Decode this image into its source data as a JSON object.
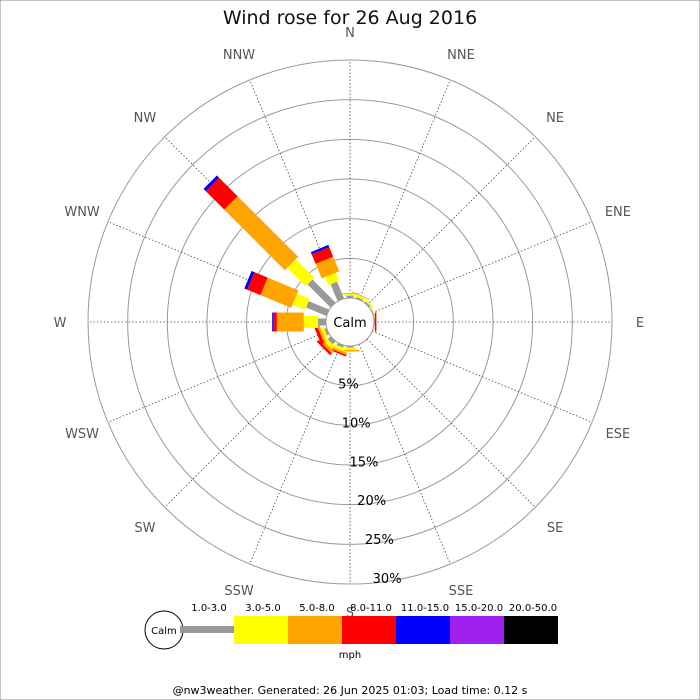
{
  "chart_data": {
    "type": "wind-rose",
    "title": "Wind rose for 26 Aug 2016",
    "directions": [
      "N",
      "NNE",
      "NE",
      "ENE",
      "E",
      "ESE",
      "SE",
      "SSE",
      "S",
      "SSW",
      "SW",
      "WSW",
      "W",
      "WNW",
      "NW",
      "NNW"
    ],
    "ring_labels": [
      "5%",
      "10%",
      "15%",
      "20%",
      "25%",
      "30%"
    ],
    "rmax_pct": 30,
    "calm_label": "Calm",
    "unit": "mph",
    "speed_bins": [
      {
        "label": "1.0-3.0",
        "color": "#999999"
      },
      {
        "label": "3.0-5.0",
        "color": "#ffff00"
      },
      {
        "label": "5.0-8.0",
        "color": "#ffa500"
      },
      {
        "label": "8.0-11.0",
        "color": "#ff0000"
      },
      {
        "label": "11.0-15.0",
        "color": "#0000ff"
      },
      {
        "label": "15.0-20.0",
        "color": "#a020f0"
      },
      {
        "label": "20.0-50.0",
        "color": "#000000"
      }
    ],
    "frequencies_pct": {
      "N": [
        0.3,
        0.2,
        0.1,
        0,
        0,
        0,
        0
      ],
      "NNE": [
        0.2,
        0.3,
        0.1,
        0,
        0,
        0,
        0
      ],
      "NE": [
        0.2,
        0.2,
        0,
        0,
        0,
        0,
        0
      ],
      "ENE": [
        0.1,
        0.1,
        0,
        0,
        0,
        0,
        0
      ],
      "E": [
        0.1,
        0,
        0,
        0.2,
        0,
        0,
        0
      ],
      "ESE": [
        0,
        0,
        0,
        0,
        0,
        0,
        0
      ],
      "SE": [
        0,
        0,
        0,
        0,
        0,
        0,
        0
      ],
      "SSE": [
        0,
        0,
        0,
        0,
        0,
        0,
        0
      ],
      "S": [
        0.2,
        0.3,
        0.2,
        0,
        0,
        0,
        0
      ],
      "SSW": [
        0.3,
        0.4,
        0.3,
        0.2,
        0,
        0,
        0
      ],
      "SW": [
        0.5,
        0.5,
        0.4,
        0.3,
        0,
        0,
        0
      ],
      "WSW": [
        0.3,
        0.4,
        0.3,
        0.4,
        0,
        0,
        0
      ],
      "W": [
        1.0,
        1.8,
        3.4,
        0.5,
        0.1,
        0,
        0
      ],
      "WNW": [
        2.8,
        1.7,
        4.2,
        1.8,
        0.4,
        0,
        0
      ],
      "NW": [
        4.1,
        3.3,
        10.8,
        3.3,
        0.4,
        0,
        0
      ],
      "NNW": [
        2.3,
        1.1,
        2.0,
        1.3,
        0.3,
        0,
        0
      ]
    }
  },
  "footer": "@nw3weather. Generated: 26 Jun 2025 01:03; Load time: 0.12 s"
}
